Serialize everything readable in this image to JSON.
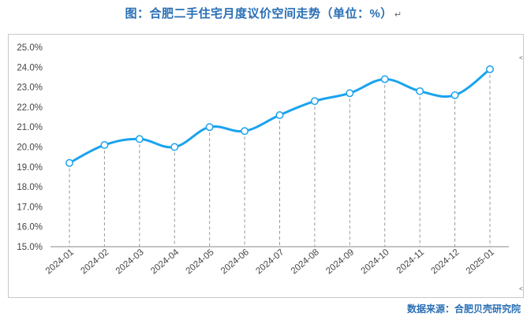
{
  "page": {
    "title": "图：合肥二手住宅月度议价空间走势（单位：%）",
    "return_mark": "↵",
    "source": "数据来源：合肥贝壳研究院"
  },
  "colors": {
    "title": "#2a6fb5",
    "line": "#1aa3ee",
    "marker_fill": "#ffffff",
    "grid_dash": "#9a9a9a",
    "axis": "#888888",
    "source": "#2a6fb5"
  },
  "chart_data": {
    "type": "line",
    "categories": [
      "2024-01",
      "2024-02",
      "2024-03",
      "2024-04",
      "2024-05",
      "2024-06",
      "2024-07",
      "2024-08",
      "2024-09",
      "2024-10",
      "2024-11",
      "2024-12",
      "2025-01"
    ],
    "series": [
      {
        "name": "",
        "values": [
          19.2,
          20.1,
          20.4,
          20.0,
          21.0,
          20.8,
          21.6,
          22.3,
          22.7,
          23.4,
          22.8,
          22.6,
          23.9
        ]
      }
    ],
    "ylim": [
      15.0,
      25.0
    ],
    "yticks": [
      "15.0%",
      "16.0%",
      "17.0%",
      "18.0%",
      "19.0%",
      "20.0%",
      "21.0%",
      "22.0%",
      "23.0%",
      "24.0%",
      "25.0%"
    ],
    "xlabel": "",
    "ylabel": "",
    "grid": "vertical dashed drop lines",
    "legend": "none"
  }
}
